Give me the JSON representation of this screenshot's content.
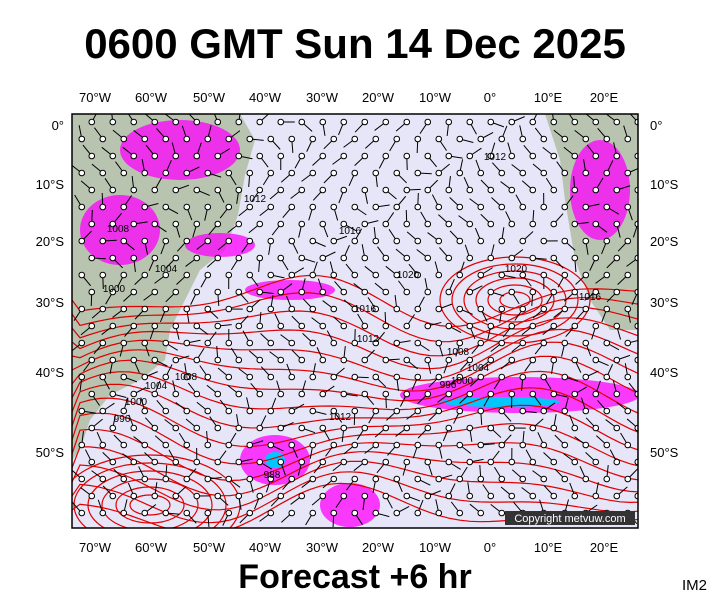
{
  "header": {
    "title": "0600 GMT Sun 14 Dec 2025"
  },
  "map": {
    "longitude_labels": [
      "70°W",
      "60°W",
      "50°W",
      "40°W",
      "30°W",
      "20°W",
      "10°W",
      "0°",
      "10°E",
      "20°E"
    ],
    "latitude_labels": [
      "0°",
      "10°S",
      "20°S",
      "30°S",
      "40°S",
      "50°S"
    ],
    "isobar_labels": [
      1012,
      1012,
      1016,
      1020,
      1020,
      1016,
      1008,
      1004,
      1000,
      996,
      1004,
      1000,
      996,
      1008,
      1012,
      988,
      1000,
      1004,
      1008,
      1016,
      1012
    ],
    "copyright": "Copyright metvuw.com"
  },
  "footer": {
    "forecast": "Forecast +6 hr",
    "image_id": "IM2"
  }
}
